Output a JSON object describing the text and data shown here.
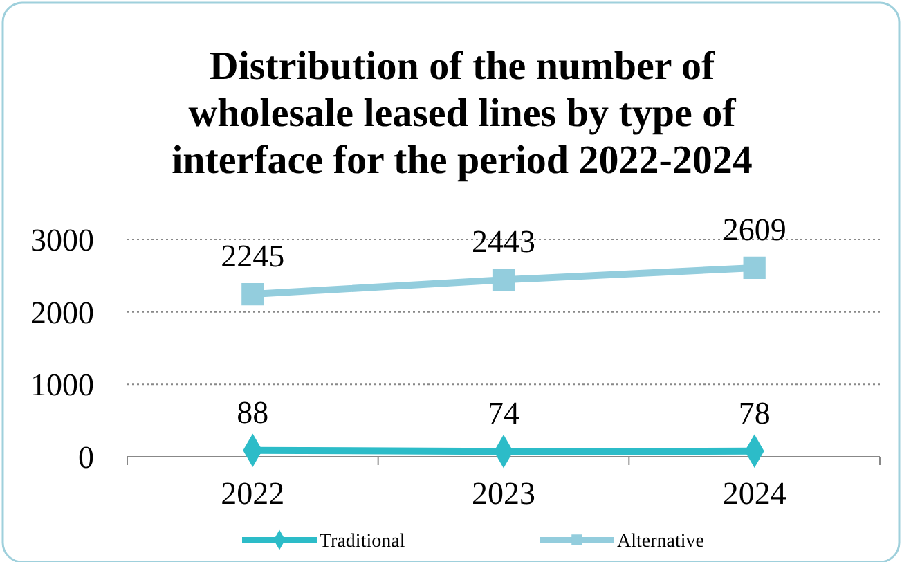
{
  "chart_data": {
    "type": "line",
    "title": "Distribution of the number of wholesale leased lines by type of interface for the period 2022-2024",
    "categories": [
      "2022",
      "2023",
      "2024"
    ],
    "series": [
      {
        "name": "Traditional",
        "color": "#2cbcc8",
        "values": [
          88,
          74,
          78
        ],
        "marker": "diamond"
      },
      {
        "name": "Alternative",
        "color": "#93cddd",
        "values": [
          2245,
          2443,
          2609
        ],
        "marker": "square"
      }
    ],
    "ylim": [
      0,
      3000
    ],
    "yticks": [
      0,
      1000,
      2000,
      3000
    ],
    "grid": "y",
    "legend": "bottom",
    "data_labels": true
  }
}
